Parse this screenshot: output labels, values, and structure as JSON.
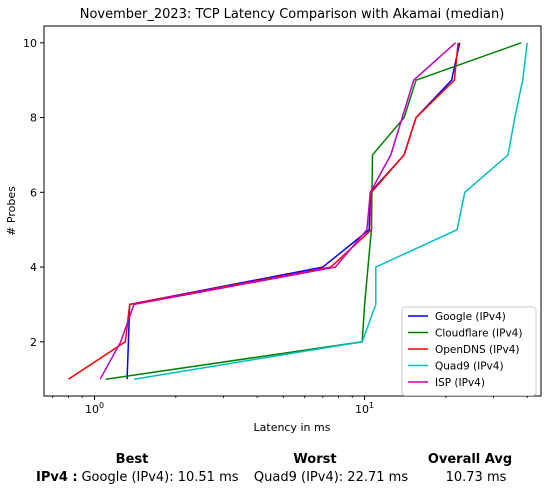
{
  "chart_data": {
    "type": "line",
    "title": "November_2023: TCP Latency Comparison with Akamai (median)",
    "xlabel": "Latency in ms",
    "ylabel": "# Probes",
    "xscale": "log",
    "xlim": [
      0.65,
      45
    ],
    "ylim": [
      0.55,
      10.45
    ],
    "x_ticks": [
      {
        "value": 1,
        "label": "10^0"
      },
      {
        "value": 10,
        "label": "10^1"
      }
    ],
    "y_ticks": [
      2,
      4,
      6,
      8,
      10
    ],
    "legend_position": "lower-right",
    "series": [
      {
        "name": "Google (IPv4)",
        "color": "#0000ff",
        "points": [
          [
            1.32,
            1
          ],
          [
            1.35,
            3
          ],
          [
            7.0,
            4
          ],
          [
            10.4,
            5
          ],
          [
            10.5,
            6
          ],
          [
            14.0,
            7
          ],
          [
            15.5,
            8
          ],
          [
            21.0,
            9
          ],
          [
            22.5,
            10
          ]
        ]
      },
      {
        "name": "Cloudflare (IPv4)",
        "color": "#008000",
        "points": [
          [
            1.1,
            1
          ],
          [
            9.8,
            2
          ],
          [
            10.0,
            3
          ],
          [
            10.6,
            5
          ],
          [
            10.7,
            7
          ],
          [
            14.0,
            8
          ],
          [
            15.5,
            9
          ],
          [
            38.0,
            10
          ]
        ]
      },
      {
        "name": "OpenDNS (IPv4)",
        "color": "#ff0000",
        "points": [
          [
            0.8,
            1
          ],
          [
            1.3,
            2
          ],
          [
            1.35,
            3
          ],
          [
            7.5,
            4
          ],
          [
            10.6,
            5
          ],
          [
            10.6,
            6
          ],
          [
            14.0,
            7
          ],
          [
            15.5,
            8
          ],
          [
            21.5,
            9
          ],
          [
            22.2,
            10
          ]
        ]
      },
      {
        "name": "Quad9 (IPv4)",
        "color": "#00bfbf",
        "points": [
          [
            1.4,
            1
          ],
          [
            9.8,
            2
          ],
          [
            11.0,
            3
          ],
          [
            11.0,
            4
          ],
          [
            22.0,
            5
          ],
          [
            23.5,
            6
          ],
          [
            34.0,
            7
          ],
          [
            36.0,
            8
          ],
          [
            38.5,
            9
          ],
          [
            40.0,
            10
          ]
        ]
      },
      {
        "name": "ISP (IPv4)",
        "color": "#bf00bf",
        "points": [
          [
            1.05,
            1
          ],
          [
            1.25,
            2
          ],
          [
            1.4,
            3
          ],
          [
            7.8,
            4
          ],
          [
            10.2,
            5
          ],
          [
            10.5,
            6
          ],
          [
            12.5,
            7
          ],
          [
            15.2,
            9
          ],
          [
            21.7,
            10
          ]
        ]
      }
    ]
  },
  "summary": {
    "best_header": "Best",
    "worst_header": "Worst",
    "avg_header": "Overall Avg",
    "row_label": "IPv4 :",
    "best_value": "Google (IPv4): 10.51 ms",
    "worst_value": "Quad9 (IPv4): 22.71 ms",
    "avg_value": "10.73 ms"
  }
}
